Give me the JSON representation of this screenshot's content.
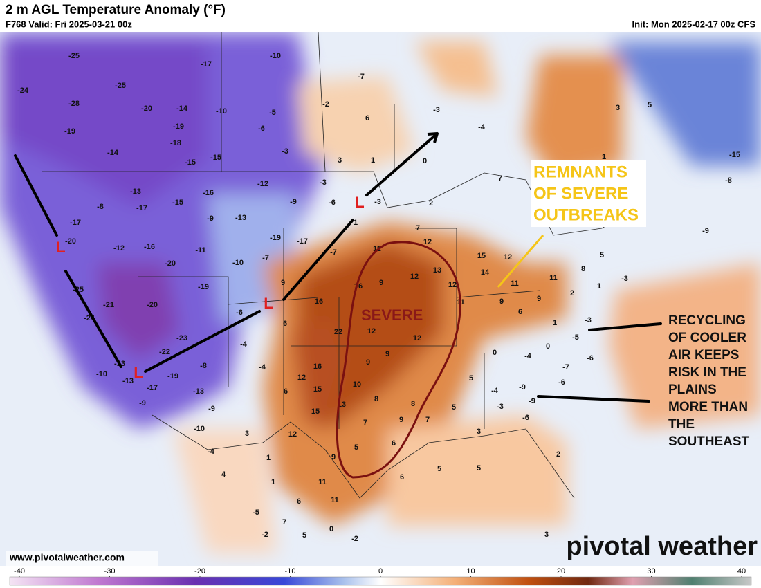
{
  "header": {
    "title": "2 m AGL Temperature Anomaly (°F)",
    "valid": "F768 Valid: Fri 2025-03-21 00z",
    "init": "Init: Mon 2025-02-17 00z CFS"
  },
  "map": {
    "values": [
      -25,
      -24,
      -28,
      -25,
      -20,
      -14,
      -19,
      -18,
      -19,
      -14,
      -15,
      -15,
      -17,
      -10,
      -10,
      -5,
      -6,
      -3,
      3,
      1,
      -7,
      -2,
      6,
      -3,
      -4,
      0,
      7,
      -13,
      -17,
      -15,
      -16,
      -12,
      -9,
      -3,
      -6,
      -3,
      2,
      -13,
      -9,
      -19,
      -17,
      -7,
      -12,
      -16,
      -11,
      -10,
      -7,
      -20,
      -20,
      -17,
      -8,
      -24,
      -21,
      -20,
      -19,
      9,
      16,
      16,
      11,
      9,
      12,
      13,
      12,
      11,
      12,
      7,
      15,
      12,
      14,
      11,
      11,
      9,
      9,
      6,
      2,
      1,
      -3,
      1,
      -3,
      -5,
      0,
      -4,
      -6,
      0,
      -7,
      -9,
      -6,
      -9,
      -6,
      6,
      -6,
      -4,
      -4,
      22,
      12,
      12,
      9,
      9,
      16,
      12,
      15,
      15,
      6,
      10,
      8,
      13,
      8,
      7,
      9,
      7,
      5,
      5,
      -4,
      -3,
      12,
      5,
      6,
      6,
      5,
      5,
      3,
      2,
      9,
      11,
      11,
      6,
      1,
      1,
      3,
      -10,
      -13,
      -8,
      -9,
      -23,
      -22,
      -19,
      -17,
      -13,
      -10,
      -9,
      -4,
      4,
      -5,
      -2,
      7,
      5,
      0,
      -2,
      5,
      3,
      -15,
      -8,
      -9,
      5,
      8,
      1,
      3,
      1,
      -25,
      -13
    ],
    "lows": [
      "L",
      "L",
      "L",
      "L"
    ]
  },
  "annotations": {
    "severe": "SEVERE",
    "remnants": [
      "REMNANTS",
      "OF SEVERE",
      "OUTBREAKS"
    ],
    "recycling": [
      "RECYCLING",
      "OF COOLER",
      "AIR KEEPS",
      "RISK IN THE",
      "PLAINS",
      "MORE THAN",
      "THE",
      "SOUTHEAST"
    ]
  },
  "footer": {
    "website": "www.pivotalweather.com",
    "brand": "pivotal weather"
  },
  "colorbar": {
    "ticks": [
      -40,
      -30,
      -20,
      -10,
      0,
      10,
      20,
      30,
      40
    ]
  }
}
